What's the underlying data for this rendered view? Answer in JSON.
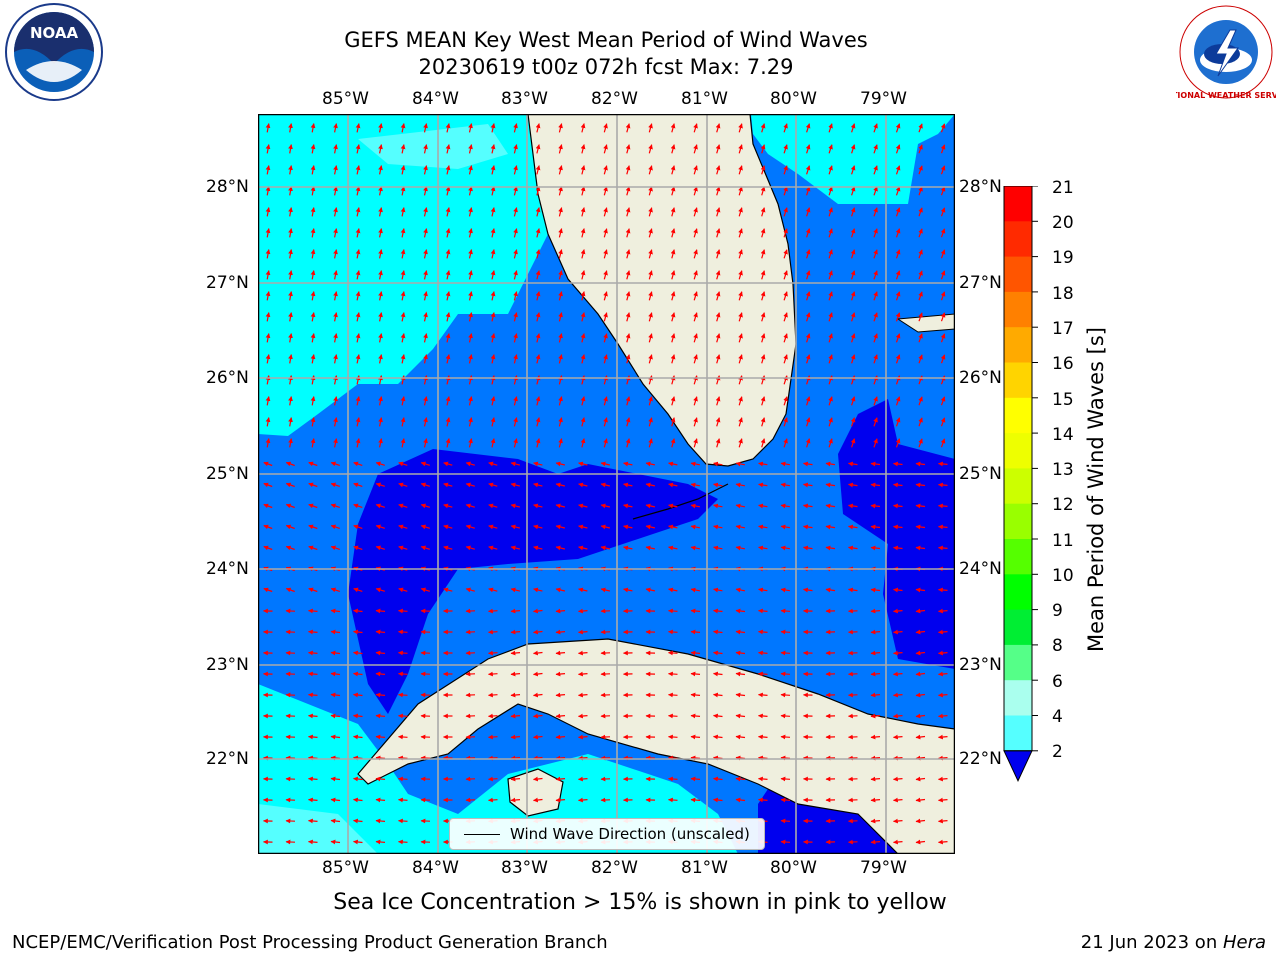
{
  "header": {
    "title_line1": "GEFS MEAN Key West Mean Period of Wind Waves",
    "title_line2": "20230619 t00z 072h fcst   Max: 7.29"
  },
  "map": {
    "lon_ticks": [
      "85°W",
      "84°W",
      "83°W",
      "82°W",
      "81°W",
      "80°W",
      "79°W"
    ],
    "lat_ticks": [
      "28°N",
      "27°N",
      "26°N",
      "25°N",
      "24°N",
      "23°N",
      "22°N"
    ],
    "legend_label": "Wind Wave Direction (unscaled)"
  },
  "colorbar": {
    "title": "Mean Period of Wind Waves [s]",
    "ticks": [
      "21",
      "20",
      "19",
      "18",
      "17",
      "16",
      "15",
      "14",
      "13",
      "12",
      "11",
      "10",
      "9",
      "8",
      "6",
      "4",
      "2"
    ],
    "colors": [
      "#ff0000",
      "#ff2a00",
      "#ff5500",
      "#ff8000",
      "#ffaa00",
      "#ffd400",
      "#ffff00",
      "#eeff00",
      "#ccff00",
      "#99ff00",
      "#55ff00",
      "#00ff00",
      "#00ee33",
      "#55ff88",
      "#aaffee",
      "#55ffff",
      "#00ffff",
      "#00ccff",
      "#0077ff",
      "#0000ee"
    ]
  },
  "logos": {
    "noaa": "NOAA",
    "nws": "NATIONAL WEATHER SERVICE"
  },
  "footer": {
    "note": "Sea Ice Concentration > 15% is shown in pink to yellow",
    "left": "NCEP/EMC/Verification Post Processing Product Generation Branch",
    "right_date": "21 Jun 2023 on ",
    "right_host": "Hera"
  }
}
